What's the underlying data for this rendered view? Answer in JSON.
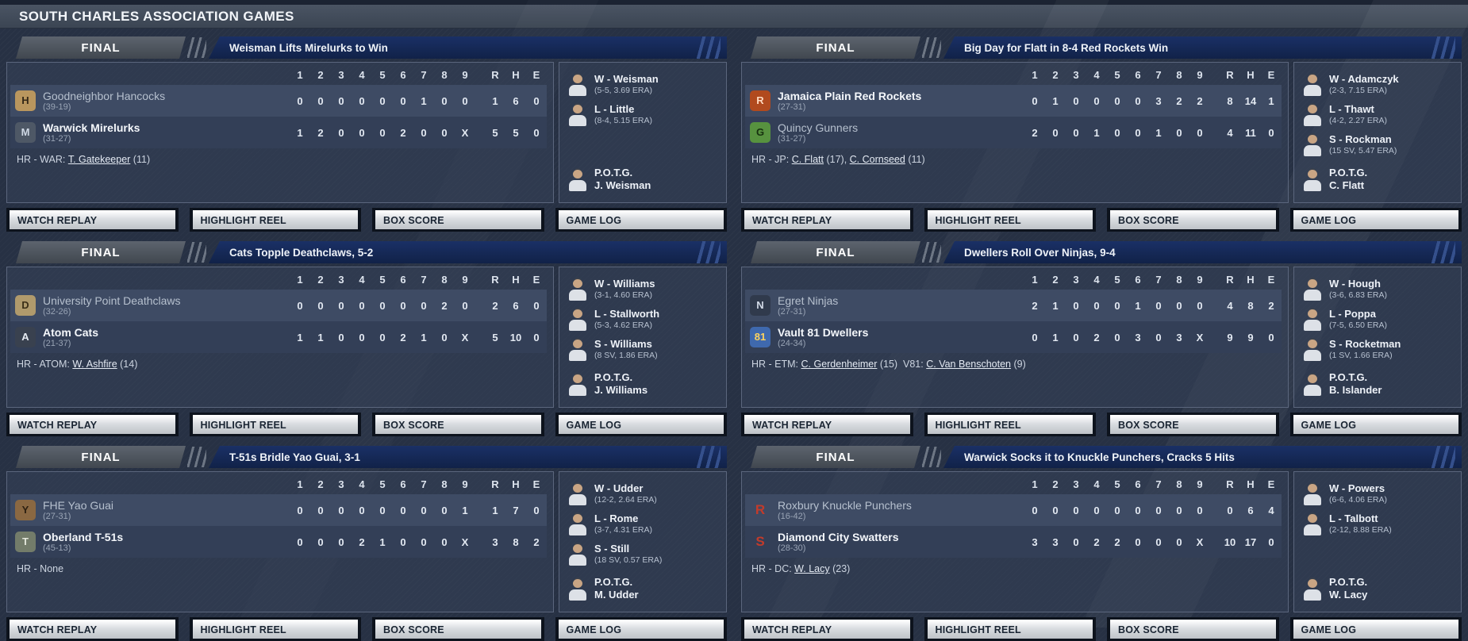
{
  "title_bar": {
    "title": "SOUTH CHARLES ASSOCIATION GAMES"
  },
  "labels": {
    "innings": [
      "1",
      "2",
      "3",
      "4",
      "5",
      "6",
      "7",
      "8",
      "9"
    ],
    "r": "R",
    "h": "H",
    "e": "E",
    "potg": "P.O.T.G."
  },
  "buttons": {
    "watch_replay": "WATCH REPLAY",
    "highlight_reel": "HIGHLIGHT REEL",
    "box_score": "BOX SCORE",
    "game_log": "GAME LOG"
  },
  "colors": {
    "page_bg": "#273144",
    "headline_bar": "#16295b",
    "final_banner": "#4c535c",
    "away_row": "#3e4b64",
    "home_row": "#333f57",
    "button_face": "#d9dce0",
    "box_border": "#5b667d"
  },
  "games": [
    {
      "status": "FINAL",
      "headline": "Weisman Lifts Mirelurks to Win",
      "away": {
        "name": "Goodneighbor Hancocks",
        "record": "(39-19)",
        "innings": [
          "0",
          "0",
          "0",
          "0",
          "0",
          "0",
          "1",
          "0",
          "0"
        ],
        "r": "1",
        "h": "6",
        "e": "0",
        "winner": false,
        "logo": {
          "ch": "H",
          "bg": "#b9965e",
          "fg": "#332717"
        }
      },
      "home": {
        "name": "Warwick Mirelurks",
        "record": "(31-27)",
        "innings": [
          "1",
          "2",
          "0",
          "0",
          "0",
          "2",
          "0",
          "0",
          "X"
        ],
        "r": "5",
        "h": "5",
        "e": "0",
        "winner": true,
        "logo": {
          "ch": "M",
          "bg": "#4e5866",
          "fg": "#cfd8e4"
        }
      },
      "hr": [
        {
          "t": "HR - WAR: "
        },
        {
          "t": "T. Gatekeeper",
          "link": true
        },
        {
          "t": " (11)"
        }
      ],
      "pitchers": [
        {
          "label": "W - Weisman",
          "detail": "(5-5, 3.69 ERA)"
        },
        {
          "label": "L - Little",
          "detail": "(8-4, 5.15 ERA)"
        }
      ],
      "potg": "J. Weisman"
    },
    {
      "status": "FINAL",
      "headline": "Big Day for Flatt in 8-4 Red Rockets Win",
      "away": {
        "name": "Jamaica Plain Red Rockets",
        "record": "(27-31)",
        "innings": [
          "0",
          "1",
          "0",
          "0",
          "0",
          "0",
          "3",
          "2",
          "2"
        ],
        "r": "8",
        "h": "14",
        "e": "1",
        "winner": true,
        "logo": {
          "ch": "R",
          "bg": "#b14a1e",
          "fg": "#ffd9bf"
        }
      },
      "home": {
        "name": "Quincy Gunners",
        "record": "(31-27)",
        "innings": [
          "2",
          "0",
          "0",
          "1",
          "0",
          "0",
          "1",
          "0",
          "0"
        ],
        "r": "4",
        "h": "11",
        "e": "0",
        "winner": false,
        "logo": {
          "ch": "G",
          "bg": "#57923f",
          "fg": "#16300f"
        }
      },
      "hr": [
        {
          "t": "HR - JP: "
        },
        {
          "t": "C. Flatt",
          "link": true
        },
        {
          "t": " (17), "
        },
        {
          "t": "C. Cornseed",
          "link": true
        },
        {
          "t": " (11)"
        }
      ],
      "pitchers": [
        {
          "label": "W - Adamczyk",
          "detail": "(2-3, 7.15 ERA)"
        },
        {
          "label": "L - Thawt",
          "detail": "(4-2, 2.27 ERA)"
        },
        {
          "label": "S - Rockman",
          "detail": "(15 SV, 5.47 ERA)"
        }
      ],
      "potg": "C. Flatt"
    },
    {
      "status": "FINAL",
      "headline": "Cats Topple Deathclaws, 5-2",
      "away": {
        "name": "University Point Deathclaws",
        "record": "(32-26)",
        "innings": [
          "0",
          "0",
          "0",
          "0",
          "0",
          "0",
          "0",
          "2",
          "0"
        ],
        "r": "2",
        "h": "6",
        "e": "0",
        "winner": false,
        "logo": {
          "ch": "D",
          "bg": "#b09a6c",
          "fg": "#3c2f18"
        }
      },
      "home": {
        "name": "Atom Cats",
        "record": "(21-37)",
        "innings": [
          "1",
          "1",
          "0",
          "0",
          "0",
          "2",
          "1",
          "0",
          "X"
        ],
        "r": "5",
        "h": "10",
        "e": "0",
        "winner": true,
        "logo": {
          "ch": "A",
          "bg": "#39414f",
          "fg": "#e6ebf2"
        }
      },
      "hr": [
        {
          "t": "HR - ATOM: "
        },
        {
          "t": "W. Ashfire",
          "link": true
        },
        {
          "t": " (14)"
        }
      ],
      "pitchers": [
        {
          "label": "W - Williams",
          "detail": "(3-1, 4.60 ERA)"
        },
        {
          "label": "L - Stallworth",
          "detail": "(5-3, 4.62 ERA)"
        },
        {
          "label": "S - Williams",
          "detail": "(8 SV, 1.86 ERA)"
        }
      ],
      "potg": "J. Williams"
    },
    {
      "status": "FINAL",
      "headline": "Dwellers Roll Over Ninjas, 9-4",
      "away": {
        "name": "Egret Ninjas",
        "record": "(27-31)",
        "innings": [
          "2",
          "1",
          "0",
          "0",
          "0",
          "1",
          "0",
          "0",
          "0"
        ],
        "r": "4",
        "h": "8",
        "e": "2",
        "winner": false,
        "logo": {
          "ch": "N",
          "bg": "#303a4c",
          "fg": "#d3dbe7"
        }
      },
      "home": {
        "name": "Vault 81 Dwellers",
        "record": "(24-34)",
        "innings": [
          "0",
          "1",
          "0",
          "2",
          "0",
          "3",
          "0",
          "3",
          "X"
        ],
        "r": "9",
        "h": "9",
        "e": "0",
        "winner": true,
        "logo": {
          "ch": "81",
          "bg": "#3f69ae",
          "fg": "#ffd45e"
        }
      },
      "hr": [
        {
          "t": "HR - ETM: "
        },
        {
          "t": "C. Gerdenheimer",
          "link": true
        },
        {
          "t": " (15)  V81: "
        },
        {
          "t": "C. Van Benschoten",
          "link": true
        },
        {
          "t": " (9)"
        }
      ],
      "pitchers": [
        {
          "label": "W - Hough",
          "detail": "(3-6, 6.83 ERA)"
        },
        {
          "label": "L - Poppa",
          "detail": "(7-5, 6.50 ERA)"
        },
        {
          "label": "S - Rocketman",
          "detail": "(1 SV, 1.66 ERA)"
        }
      ],
      "potg": "B. Islander"
    },
    {
      "status": "FINAL",
      "headline": "T-51s Bridle Yao Guai, 3-1",
      "away": {
        "name": "FHE Yao Guai",
        "record": "(27-31)",
        "innings": [
          "0",
          "0",
          "0",
          "0",
          "0",
          "0",
          "0",
          "0",
          "1"
        ],
        "r": "1",
        "h": "7",
        "e": "0",
        "winner": false,
        "logo": {
          "ch": "Y",
          "bg": "#8a6842",
          "fg": "#2d2011"
        }
      },
      "home": {
        "name": "Oberland T-51s",
        "record": "(45-13)",
        "innings": [
          "0",
          "0",
          "0",
          "2",
          "1",
          "0",
          "0",
          "0",
          "X"
        ],
        "r": "3",
        "h": "8",
        "e": "2",
        "winner": true,
        "logo": {
          "ch": "T",
          "bg": "#737c6a",
          "fg": "#e3e7dc"
        }
      },
      "hr": [
        {
          "t": "HR - None"
        }
      ],
      "pitchers": [
        {
          "label": "W - Udder",
          "detail": "(12-2, 2.64 ERA)"
        },
        {
          "label": "L - Rome",
          "detail": "(3-7, 4.31 ERA)"
        },
        {
          "label": "S - Still",
          "detail": "(18 SV, 0.57 ERA)"
        }
      ],
      "potg": "M. Udder"
    },
    {
      "status": "FINAL",
      "headline": "Warwick Socks it to Knuckle Punchers, Cracks 5 Hits",
      "away": {
        "name": "Roxbury Knuckle Punchers",
        "record": "(16-42)",
        "innings": [
          "0",
          "0",
          "0",
          "0",
          "0",
          "0",
          "0",
          "0",
          "0"
        ],
        "r": "0",
        "h": "6",
        "e": "4",
        "winner": false,
        "logo": {
          "ch": "R",
          "bg": "transparent",
          "fg": "#c23b2b"
        }
      },
      "home": {
        "name": "Diamond City Swatters",
        "record": "(28-30)",
        "innings": [
          "3",
          "3",
          "0",
          "2",
          "2",
          "0",
          "0",
          "0",
          "X"
        ],
        "r": "10",
        "h": "17",
        "e": "0",
        "winner": true,
        "logo": {
          "ch": "S",
          "bg": "transparent",
          "fg": "#c23b2b"
        }
      },
      "hr": [
        {
          "t": "HR - DC: "
        },
        {
          "t": "W. Lacy",
          "link": true
        },
        {
          "t": " (23)"
        }
      ],
      "pitchers": [
        {
          "label": "W - Powers",
          "detail": "(6-6, 4.06 ERA)"
        },
        {
          "label": "L - Talbott",
          "detail": "(2-12, 8.88 ERA)"
        }
      ],
      "potg": "W. Lacy"
    }
  ]
}
